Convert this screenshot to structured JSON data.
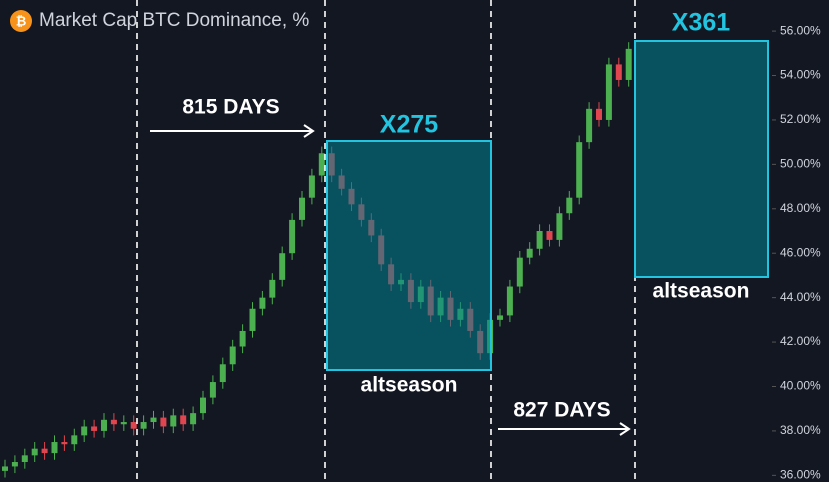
{
  "chart_data": {
    "type": "candlestick",
    "title": "Market Cap BTC Dominance, %",
    "categories": [
      null,
      null,
      null,
      null,
      null,
      null,
      null,
      null,
      null,
      null,
      null,
      null,
      null,
      null,
      null,
      null,
      null,
      null,
      null,
      null,
      null,
      null,
      null,
      null,
      null,
      null,
      null,
      null,
      null,
      null,
      null,
      null,
      null,
      null,
      null,
      null,
      null,
      null,
      null,
      null,
      null,
      null,
      null,
      null,
      null,
      null,
      null,
      null,
      null,
      null,
      null,
      null,
      null,
      null,
      null,
      null,
      null,
      null,
      null,
      null,
      null,
      null,
      null,
      null
    ],
    "open": [
      36.2,
      36.4,
      36.6,
      36.9,
      37.2,
      37.0,
      37.5,
      37.4,
      37.8,
      38.2,
      38.0,
      38.5,
      38.3,
      38.4,
      38.1,
      38.4,
      38.6,
      38.2,
      38.7,
      38.3,
      38.8,
      39.5,
      40.2,
      41.0,
      41.8,
      42.5,
      43.5,
      44.0,
      44.8,
      46.0,
      47.5,
      48.5,
      49.5,
      50.5,
      49.5,
      48.9,
      48.2,
      47.5,
      46.8,
      45.5,
      44.6,
      44.8,
      43.8,
      44.5,
      43.2,
      44.0,
      43.0,
      43.5,
      42.5,
      41.5,
      43.0,
      43.2,
      44.5,
      45.8,
      46.2,
      47.0,
      46.6,
      47.8,
      48.5,
      51.0,
      52.5,
      52.0,
      54.5,
      53.8
    ],
    "high": [
      36.7,
      36.9,
      37.2,
      37.5,
      37.5,
      37.8,
      37.8,
      38.1,
      38.5,
      38.5,
      38.8,
      38.8,
      38.7,
      38.7,
      38.7,
      38.9,
      38.9,
      39.0,
      39.0,
      39.1,
      39.8,
      40.5,
      41.3,
      42.1,
      42.8,
      43.8,
      44.3,
      45.1,
      46.3,
      47.8,
      48.8,
      49.8,
      50.8,
      50.8,
      49.8,
      49.2,
      48.5,
      47.8,
      47.1,
      45.8,
      45.1,
      45.1,
      44.8,
      44.8,
      44.3,
      44.3,
      43.8,
      43.8,
      42.8,
      43.3,
      43.5,
      44.8,
      46.1,
      46.5,
      47.3,
      47.3,
      48.1,
      48.8,
      51.3,
      52.8,
      52.8,
      54.8,
      54.8,
      55.5
    ],
    "low": [
      35.9,
      36.1,
      36.3,
      36.6,
      36.7,
      36.7,
      37.1,
      37.1,
      37.5,
      37.7,
      37.7,
      38.0,
      38.0,
      37.8,
      37.8,
      38.1,
      37.9,
      37.9,
      38.0,
      38.0,
      38.5,
      39.2,
      39.9,
      40.7,
      41.5,
      42.2,
      43.2,
      43.7,
      44.5,
      45.7,
      47.2,
      48.2,
      49.2,
      49.2,
      48.6,
      47.9,
      47.2,
      46.5,
      45.2,
      44.3,
      44.3,
      43.5,
      43.5,
      42.9,
      42.9,
      42.7,
      42.7,
      42.2,
      41.2,
      41.2,
      42.7,
      42.9,
      44.2,
      45.5,
      45.9,
      46.3,
      46.3,
      47.5,
      48.2,
      50.7,
      51.7,
      51.7,
      53.5,
      53.5
    ],
    "close": [
      36.4,
      36.6,
      36.9,
      37.2,
      37.0,
      37.5,
      37.4,
      37.8,
      38.2,
      38.0,
      38.5,
      38.3,
      38.4,
      38.1,
      38.4,
      38.6,
      38.2,
      38.7,
      38.3,
      38.8,
      39.5,
      40.2,
      41.0,
      41.8,
      42.5,
      43.5,
      44.0,
      44.8,
      46.0,
      47.5,
      48.5,
      49.5,
      50.5,
      49.5,
      48.9,
      48.2,
      47.5,
      46.8,
      45.5,
      44.6,
      44.8,
      43.8,
      44.5,
      43.2,
      44.0,
      43.0,
      43.5,
      42.5,
      41.5,
      43.0,
      43.2,
      44.5,
      45.8,
      46.2,
      47.0,
      46.6,
      47.8,
      48.5,
      51.0,
      52.5,
      52.0,
      54.5,
      53.8,
      55.2
    ],
    "up_color": "#4caf50",
    "down_color": "#e0464f",
    "ylim": [
      35.7,
      57.4
    ],
    "yticks": [
      {
        "value": 36,
        "label": "36.00%"
      },
      {
        "value": 38,
        "label": "38.00%"
      },
      {
        "value": 40,
        "label": "40.00%"
      },
      {
        "value": 42,
        "label": "42.00%"
      },
      {
        "value": 44,
        "label": "44.00%"
      },
      {
        "value": 46,
        "label": "46.00%"
      },
      {
        "value": 48,
        "label": "48.00%"
      },
      {
        "value": 50,
        "label": "50.00%"
      },
      {
        "value": 52,
        "label": "52.00%"
      },
      {
        "value": 54,
        "label": "54.00%"
      },
      {
        "value": 56,
        "label": "56.00%"
      }
    ],
    "annotations": [
      {
        "text": "815 DAYS"
      },
      {
        "text": "X275"
      },
      {
        "text": "altseason"
      },
      {
        "text": "827 DAYS"
      },
      {
        "text": "X361"
      },
      {
        "text": "altseason"
      }
    ]
  }
}
